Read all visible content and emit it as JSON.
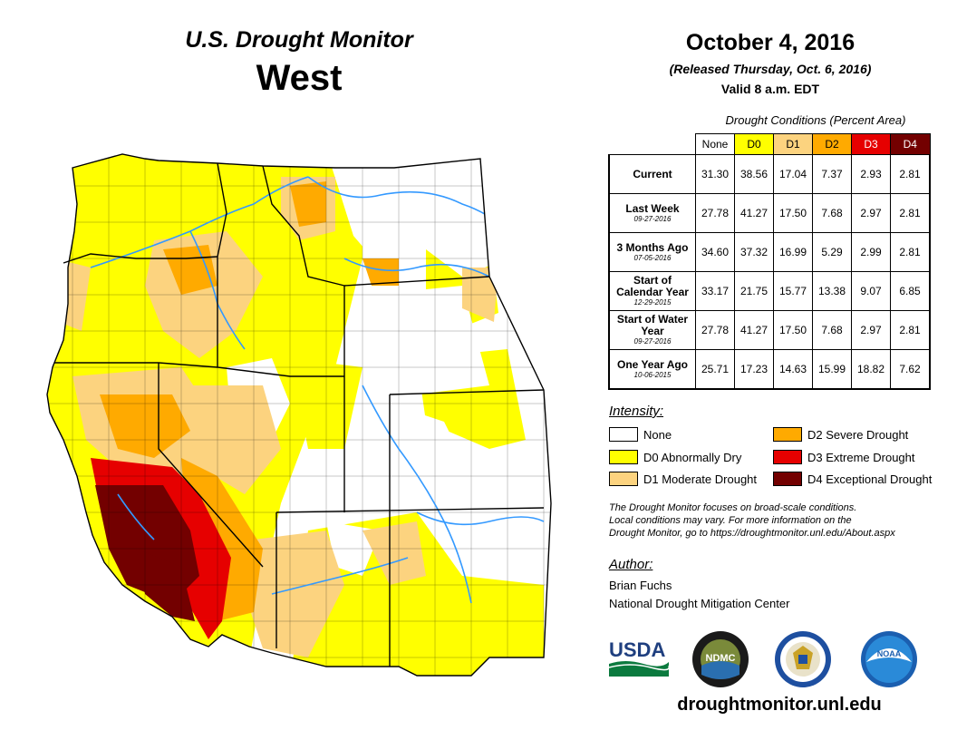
{
  "header": {
    "product": "U.S. Drought Monitor",
    "region": "West",
    "date": "October 4, 2016",
    "released": "(Released Thursday, Oct. 6, 2016)",
    "valid": "Valid 8 a.m. EDT"
  },
  "stats_table": {
    "title": "Drought Conditions (Percent Area)",
    "columns": [
      "None",
      "D0",
      "D1",
      "D2",
      "D3",
      "D4"
    ],
    "column_colors": [
      "#ffffff",
      "#ffff00",
      "#fcd37f",
      "#ffaa00",
      "#e60000",
      "#730000"
    ],
    "rows": [
      {
        "label": "Current",
        "date": "",
        "values": [
          "31.30",
          "38.56",
          "17.04",
          "7.37",
          "2.93",
          "2.81"
        ]
      },
      {
        "label": "Last Week",
        "date": "09-27-2016",
        "values": [
          "27.78",
          "41.27",
          "17.50",
          "7.68",
          "2.97",
          "2.81"
        ]
      },
      {
        "label": "3 Months Ago",
        "date": "07-05-2016",
        "values": [
          "34.60",
          "37.32",
          "16.99",
          "5.29",
          "2.99",
          "2.81"
        ]
      },
      {
        "label": "Start of Calendar Year",
        "date": "12-29-2015",
        "values": [
          "33.17",
          "21.75",
          "15.77",
          "13.38",
          "9.07",
          "6.85"
        ]
      },
      {
        "label": "Start of Water Year",
        "date": "09-27-2016",
        "values": [
          "27.78",
          "41.27",
          "17.50",
          "7.68",
          "2.97",
          "2.81"
        ]
      },
      {
        "label": "One Year Ago",
        "date": "10-06-2015",
        "values": [
          "25.71",
          "17.23",
          "14.63",
          "15.99",
          "18.82",
          "7.62"
        ]
      }
    ]
  },
  "legend": {
    "title": "Intensity:",
    "items": [
      {
        "label": "None",
        "color": "#ffffff"
      },
      {
        "label": "D0 Abnormally Dry",
        "color": "#ffff00"
      },
      {
        "label": "D1 Moderate Drought",
        "color": "#fcd37f"
      },
      {
        "label": "D2 Severe Drought",
        "color": "#ffaa00"
      },
      {
        "label": "D3 Extreme Drought",
        "color": "#e60000"
      },
      {
        "label": "D4 Exceptional Drought",
        "color": "#730000"
      }
    ]
  },
  "note": {
    "line1": "The Drought Monitor focuses on broad-scale conditions.",
    "line2": "Local conditions may vary. For more information on the",
    "line3": "Drought Monitor, go to https://droughtmonitor.unl.edu/About.aspx"
  },
  "author": {
    "title": "Author:",
    "name": "Brian Fuchs",
    "org": "National Drought Mitigation Center"
  },
  "logos": {
    "usda": "USDA",
    "ndmc": "NDMC",
    "noaa": "NOAA"
  },
  "footer_url": "droughtmonitor.unl.edu",
  "colors": {
    "water": "#3399ff",
    "boundary": "#000000"
  }
}
